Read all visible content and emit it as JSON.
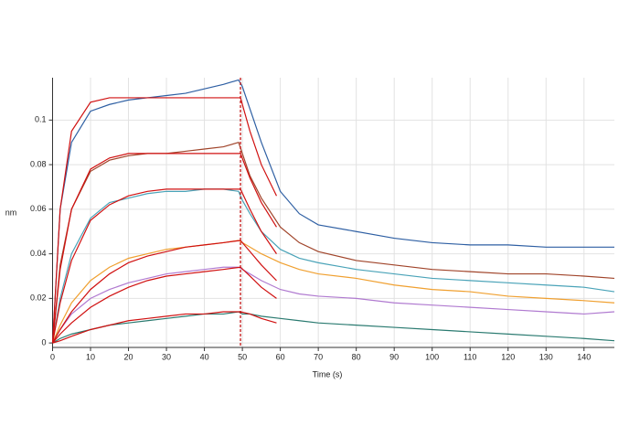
{
  "chart_data": {
    "type": "line",
    "xlabel": "Time (s)",
    "ylabel": "nm",
    "xlim": [
      0,
      148
    ],
    "ylim": [
      -0.002,
      0.119
    ],
    "xticks": [
      0,
      10,
      20,
      30,
      40,
      50,
      60,
      70,
      80,
      90,
      100,
      110,
      120,
      130,
      140
    ],
    "yticks": [
      0,
      0.02,
      0.04,
      0.06,
      0.08,
      0.1
    ],
    "grid": true,
    "vline": 49.5,
    "vline_color": "#c00000",
    "series": [
      {
        "color": "#2e5fa3",
        "x": [
          0,
          2,
          5,
          10,
          15,
          20,
          25,
          30,
          35,
          40,
          45,
          49,
          50,
          52,
          55,
          60,
          65,
          70,
          80,
          90,
          100,
          110,
          120,
          130,
          140,
          148
        ],
        "values": [
          0,
          0.06,
          0.09,
          0.104,
          0.107,
          0.109,
          0.11,
          0.111,
          0.112,
          0.114,
          0.116,
          0.118,
          0.115,
          0.105,
          0.09,
          0.068,
          0.058,
          0.053,
          0.05,
          0.047,
          0.045,
          0.044,
          0.044,
          0.043,
          0.043,
          0.043
        ]
      },
      {
        "color": "#a0442a",
        "x": [
          0,
          2,
          5,
          10,
          15,
          20,
          25,
          30,
          35,
          40,
          45,
          49,
          50,
          52,
          55,
          60,
          65,
          70,
          80,
          90,
          100,
          110,
          120,
          130,
          140,
          148
        ],
        "values": [
          0,
          0.035,
          0.06,
          0.077,
          0.082,
          0.084,
          0.085,
          0.085,
          0.086,
          0.087,
          0.088,
          0.09,
          0.085,
          0.075,
          0.065,
          0.052,
          0.045,
          0.041,
          0.037,
          0.035,
          0.033,
          0.032,
          0.031,
          0.031,
          0.03,
          0.029
        ]
      },
      {
        "color": "#4aa3b8",
        "x": [
          0,
          2,
          5,
          10,
          15,
          20,
          25,
          30,
          35,
          40,
          45,
          49,
          50,
          52,
          55,
          60,
          65,
          70,
          80,
          90,
          100,
          110,
          120,
          130,
          140,
          148
        ],
        "values": [
          0,
          0.02,
          0.04,
          0.056,
          0.063,
          0.065,
          0.067,
          0.068,
          0.068,
          0.069,
          0.069,
          0.068,
          0.064,
          0.058,
          0.05,
          0.042,
          0.038,
          0.036,
          0.033,
          0.031,
          0.029,
          0.028,
          0.027,
          0.026,
          0.025,
          0.023
        ]
      },
      {
        "color": "#f0a030",
        "x": [
          0,
          2,
          5,
          10,
          15,
          20,
          25,
          30,
          35,
          40,
          45,
          49,
          50,
          52,
          55,
          60,
          65,
          70,
          80,
          90,
          100,
          110,
          120,
          130,
          140,
          148
        ],
        "values": [
          0,
          0.008,
          0.018,
          0.028,
          0.034,
          0.038,
          0.04,
          0.042,
          0.043,
          0.044,
          0.045,
          0.046,
          0.045,
          0.043,
          0.04,
          0.036,
          0.033,
          0.031,
          0.029,
          0.026,
          0.024,
          0.023,
          0.021,
          0.02,
          0.019,
          0.018
        ]
      },
      {
        "color": "#b07ad0",
        "x": [
          0,
          2,
          5,
          10,
          15,
          20,
          25,
          30,
          35,
          40,
          45,
          49,
          50,
          52,
          55,
          60,
          65,
          70,
          80,
          90,
          100,
          110,
          120,
          130,
          140,
          148
        ],
        "values": [
          0,
          0.006,
          0.013,
          0.02,
          0.024,
          0.027,
          0.029,
          0.031,
          0.032,
          0.033,
          0.034,
          0.034,
          0.033,
          0.031,
          0.028,
          0.024,
          0.022,
          0.021,
          0.02,
          0.018,
          0.017,
          0.016,
          0.015,
          0.014,
          0.013,
          0.014
        ]
      },
      {
        "color": "#2a7a70",
        "x": [
          0,
          2,
          5,
          10,
          15,
          20,
          25,
          30,
          35,
          40,
          45,
          49,
          50,
          52,
          55,
          60,
          65,
          70,
          80,
          90,
          100,
          110,
          120,
          130,
          140,
          148
        ],
        "values": [
          0,
          0.002,
          0.004,
          0.006,
          0.008,
          0.009,
          0.01,
          0.011,
          0.012,
          0.013,
          0.013,
          0.014,
          0.013,
          0.013,
          0.012,
          0.011,
          0.01,
          0.009,
          0.008,
          0.007,
          0.006,
          0.005,
          0.004,
          0.003,
          0.002,
          0.001
        ]
      },
      {
        "color": "#d01010",
        "x": [
          0,
          2,
          5,
          10,
          15,
          20,
          25,
          30,
          35,
          40,
          45,
          49.5,
          52,
          55,
          59
        ],
        "values": [
          0,
          0.06,
          0.095,
          0.108,
          0.11,
          0.11,
          0.11,
          0.11,
          0.11,
          0.11,
          0.11,
          0.11,
          0.095,
          0.08,
          0.066
        ]
      },
      {
        "color": "#d01010",
        "x": [
          0,
          2,
          5,
          10,
          15,
          20,
          25,
          30,
          35,
          40,
          45,
          49.5,
          52,
          55,
          59
        ],
        "values": [
          0,
          0.033,
          0.06,
          0.078,
          0.083,
          0.085,
          0.085,
          0.085,
          0.085,
          0.085,
          0.085,
          0.085,
          0.074,
          0.063,
          0.052
        ]
      },
      {
        "color": "#d01010",
        "x": [
          0,
          2,
          5,
          10,
          15,
          20,
          25,
          30,
          35,
          40,
          45,
          49.5,
          52,
          55,
          59
        ],
        "values": [
          0,
          0.018,
          0.037,
          0.055,
          0.062,
          0.066,
          0.068,
          0.069,
          0.069,
          0.069,
          0.069,
          0.069,
          0.06,
          0.05,
          0.04
        ]
      },
      {
        "color": "#d01010",
        "x": [
          0,
          2,
          5,
          10,
          15,
          20,
          25,
          30,
          35,
          40,
          45,
          49.5,
          52,
          55,
          59
        ],
        "values": [
          0,
          0.006,
          0.014,
          0.024,
          0.031,
          0.036,
          0.039,
          0.041,
          0.043,
          0.044,
          0.045,
          0.046,
          0.041,
          0.035,
          0.028
        ]
      },
      {
        "color": "#d01010",
        "x": [
          0,
          2,
          5,
          10,
          15,
          20,
          25,
          30,
          35,
          40,
          45,
          49.5,
          52,
          55,
          59
        ],
        "values": [
          0,
          0.004,
          0.009,
          0.016,
          0.021,
          0.025,
          0.028,
          0.03,
          0.031,
          0.032,
          0.033,
          0.034,
          0.03,
          0.025,
          0.02
        ]
      },
      {
        "color": "#d01010",
        "x": [
          0,
          2,
          5,
          10,
          15,
          20,
          25,
          30,
          35,
          40,
          45,
          49.5,
          52,
          55,
          59
        ],
        "values": [
          0,
          0.001,
          0.003,
          0.006,
          0.008,
          0.01,
          0.011,
          0.012,
          0.013,
          0.013,
          0.014,
          0.014,
          0.013,
          0.011,
          0.009
        ]
      }
    ]
  }
}
